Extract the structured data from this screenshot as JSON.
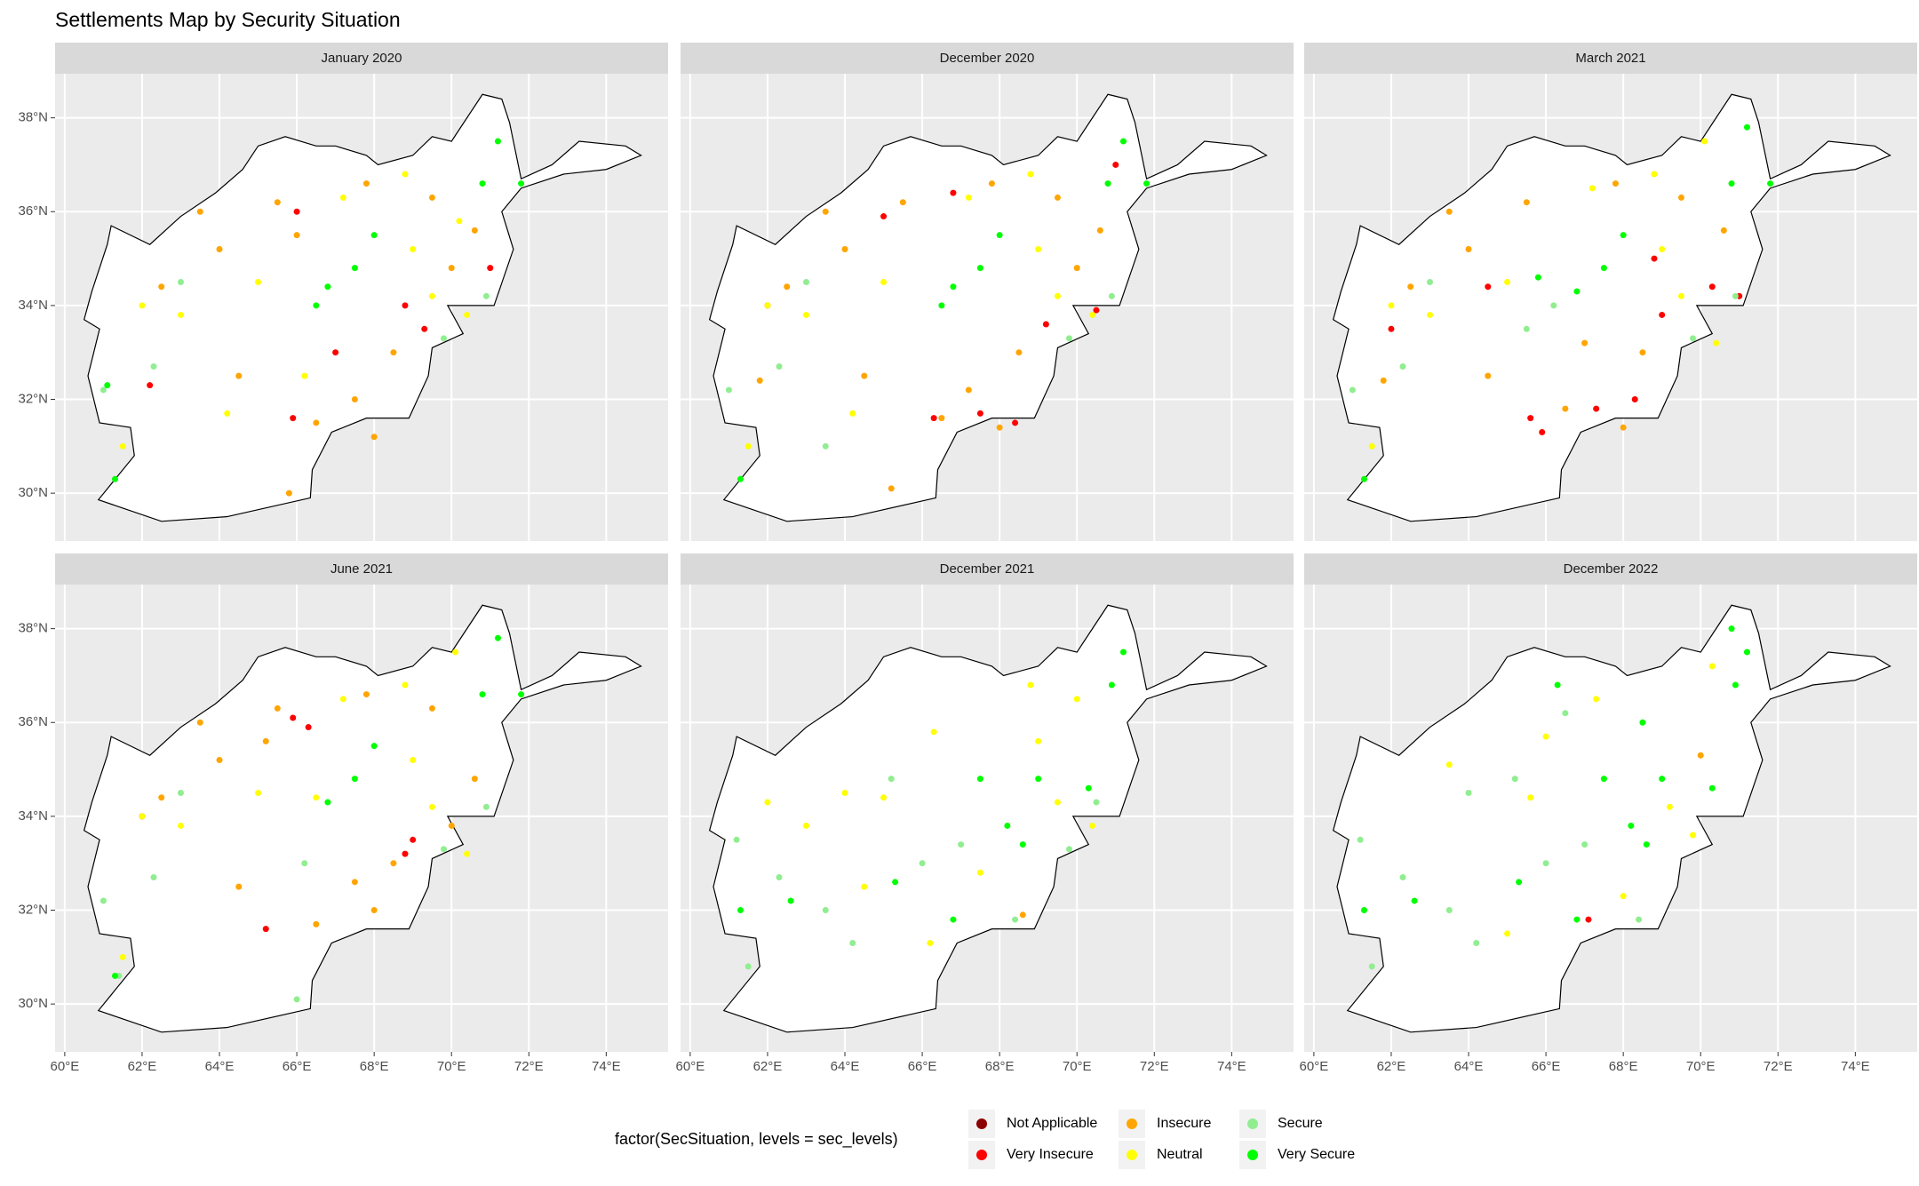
{
  "title": "Settlements Map by Security Situation",
  "legend": {
    "title": "factor(SecSituation, levels = sec_levels)",
    "entries": [
      {
        "name": "Not Applicable",
        "color": "#8b0000"
      },
      {
        "name": "Very Insecure",
        "color": "#ff0000"
      },
      {
        "name": "Insecure",
        "color": "#ffa500"
      },
      {
        "name": "Neutral",
        "color": "#ffff00"
      },
      {
        "name": "Secure",
        "color": "#90ee90"
      },
      {
        "name": "Very Secure",
        "color": "#00ff00"
      }
    ]
  },
  "xlim": [
    59.75,
    75.6
  ],
  "ylim": [
    28.98,
    38.94
  ],
  "xticks": [
    {
      "value": 60,
      "label": "60°E"
    },
    {
      "value": 62,
      "label": "62°E"
    },
    {
      "value": 64,
      "label": "64°E"
    },
    {
      "value": 66,
      "label": "66°E"
    },
    {
      "value": 68,
      "label": "68°E"
    },
    {
      "value": 70,
      "label": "70°E"
    },
    {
      "value": 72,
      "label": "72°E"
    },
    {
      "value": 74,
      "label": "74°E"
    }
  ],
  "yticks": [
    {
      "value": 30,
      "label": "30°N"
    },
    {
      "value": 32,
      "label": "32°N"
    },
    {
      "value": 34,
      "label": "34°N"
    },
    {
      "value": 36,
      "label": "36°N"
    },
    {
      "value": 38,
      "label": "38°N"
    }
  ],
  "chart_data": [
    {
      "type": "scatter",
      "title": "January 2020",
      "series": [
        {
          "x": [],
          "values": []
        },
        {
          "x": [
            66.0,
            68.8,
            69.3,
            62.2,
            65.9,
            67.0,
            71.0
          ],
          "values": [
            36.0,
            34.0,
            33.5,
            32.3,
            31.6,
            33.0,
            34.8
          ]
        },
        {
          "x": [
            65.5,
            67.8,
            64.0,
            62.5,
            67.5,
            66.5,
            68.5,
            70.0,
            66.0,
            64.5,
            69.5,
            63.5,
            65.8,
            68.0,
            70.6
          ],
          "values": [
            36.2,
            36.6,
            35.2,
            34.4,
            32.0,
            31.5,
            33.0,
            34.8,
            35.5,
            32.5,
            36.3,
            36.0,
            30.0,
            31.2,
            35.6
          ]
        },
        {
          "x": [
            68.8,
            69.5,
            63.0,
            65.0,
            61.5,
            70.4,
            66.2,
            69.0,
            67.2,
            62.0,
            64.2,
            70.2
          ],
          "values": [
            36.8,
            34.2,
            33.8,
            34.5,
            31.0,
            33.8,
            32.5,
            35.2,
            36.3,
            34.0,
            31.7,
            35.8
          ]
        },
        {
          "x": [
            69.8,
            61.0,
            63.0,
            70.9,
            62.3
          ],
          "values": [
            33.3,
            32.2,
            34.5,
            34.2,
            32.7
          ]
        },
        {
          "x": [
            67.5,
            66.5,
            70.8,
            71.2,
            68.0,
            61.3,
            66.8,
            71.8,
            61.1
          ],
          "values": [
            34.8,
            34.0,
            36.6,
            37.5,
            35.5,
            30.3,
            34.4,
            36.6,
            32.3
          ]
        }
      ]
    },
    {
      "type": "scatter",
      "title": "December 2020",
      "series": [
        {
          "x": [],
          "values": []
        },
        {
          "x": [
            66.8,
            65.0,
            66.3,
            67.5,
            68.4,
            69.2,
            70.5,
            71.0,
            62.0
          ],
          "values": [
            36.4,
            35.9,
            31.6,
            31.7,
            31.5,
            33.6,
            33.9,
            37.0,
            34.0
          ]
        },
        {
          "x": [
            65.5,
            67.8,
            64.0,
            62.5,
            67.2,
            66.5,
            68.5,
            70.0,
            63.5,
            64.5,
            69.5,
            65.2,
            68.0,
            70.6,
            61.8
          ],
          "values": [
            36.2,
            36.6,
            35.2,
            34.4,
            32.2,
            31.6,
            33.0,
            34.8,
            36.0,
            32.5,
            36.3,
            30.1,
            31.4,
            35.6,
            32.4
          ]
        },
        {
          "x": [
            68.8,
            69.5,
            63.0,
            65.0,
            61.5,
            70.4,
            69.0,
            67.2,
            62.0,
            64.2
          ],
          "values": [
            36.8,
            34.2,
            33.8,
            34.5,
            31.0,
            33.8,
            35.2,
            36.3,
            34.0,
            31.7
          ]
        },
        {
          "x": [
            69.8,
            61.0,
            63.0,
            70.9,
            62.3,
            63.5
          ],
          "values": [
            33.3,
            32.2,
            34.5,
            34.2,
            32.7,
            31.0
          ]
        },
        {
          "x": [
            67.5,
            66.5,
            70.8,
            71.2,
            68.0,
            61.3,
            66.8,
            71.8
          ],
          "values": [
            34.8,
            34.0,
            36.6,
            37.5,
            35.5,
            30.3,
            34.4,
            36.6
          ]
        }
      ]
    },
    {
      "type": "scatter",
      "title": "March 2021",
      "series": [
        {
          "x": [],
          "values": []
        },
        {
          "x": [
            65.6,
            65.9,
            67.3,
            68.3,
            69.0,
            70.3,
            71.0,
            68.8,
            62.0,
            64.5
          ],
          "values": [
            31.6,
            31.3,
            31.8,
            32.0,
            33.8,
            34.4,
            34.2,
            35.0,
            33.5,
            34.4
          ]
        },
        {
          "x": [
            65.5,
            67.8,
            64.0,
            62.5,
            66.5,
            68.5,
            63.5,
            64.5,
            69.5,
            68.0,
            70.6,
            61.8,
            67.0
          ],
          "values": [
            36.2,
            36.6,
            35.2,
            34.4,
            31.8,
            33.0,
            36.0,
            32.5,
            36.3,
            31.4,
            35.6,
            32.4,
            33.2
          ]
        },
        {
          "x": [
            68.8,
            69.5,
            63.0,
            65.0,
            61.5,
            70.4,
            69.0,
            67.2,
            62.0,
            70.1
          ],
          "values": [
            36.8,
            34.2,
            33.8,
            34.5,
            31.0,
            33.2,
            35.2,
            36.5,
            34.0,
            37.5
          ]
        },
        {
          "x": [
            69.8,
            61.0,
            63.0,
            70.9,
            62.3,
            66.2,
            65.5
          ],
          "values": [
            33.3,
            32.2,
            34.5,
            34.2,
            32.7,
            34.0,
            33.5
          ]
        },
        {
          "x": [
            67.5,
            66.8,
            70.8,
            71.2,
            68.0,
            61.3,
            65.8,
            71.8
          ],
          "values": [
            34.8,
            34.3,
            36.6,
            37.8,
            35.5,
            30.3,
            34.6,
            36.6
          ]
        }
      ]
    },
    {
      "type": "scatter",
      "title": "June 2021",
      "series": [
        {
          "x": [],
          "values": []
        },
        {
          "x": [
            65.9,
            66.3,
            65.2,
            69.0,
            68.8,
            62.0
          ],
          "values": [
            36.1,
            35.9,
            31.6,
            33.5,
            33.2,
            34.0
          ]
        },
        {
          "x": [
            65.5,
            65.2,
            67.8,
            64.0,
            62.5,
            66.5,
            68.5,
            63.5,
            64.5,
            69.5,
            68.0,
            70.6,
            67.5,
            70.0
          ],
          "values": [
            36.3,
            35.6,
            36.6,
            35.2,
            34.4,
            31.7,
            33.0,
            36.0,
            32.5,
            36.3,
            32.0,
            34.8,
            32.6,
            33.8
          ]
        },
        {
          "x": [
            68.8,
            69.5,
            63.0,
            65.0,
            61.5,
            70.4,
            69.0,
            67.2,
            62.0,
            70.1,
            66.5
          ],
          "values": [
            36.8,
            34.2,
            33.8,
            34.5,
            31.0,
            33.2,
            35.2,
            36.5,
            34.0,
            37.5,
            34.4
          ]
        },
        {
          "x": [
            69.8,
            61.0,
            63.0,
            70.9,
            62.3,
            66.2,
            66.0,
            61.4
          ],
          "values": [
            33.3,
            32.2,
            34.5,
            34.2,
            32.7,
            33.0,
            30.1,
            30.6
          ]
        },
        {
          "x": [
            67.5,
            66.8,
            70.8,
            71.2,
            68.0,
            61.3,
            71.8
          ],
          "values": [
            34.8,
            34.3,
            36.6,
            37.8,
            35.5,
            30.6,
            36.6
          ]
        }
      ]
    },
    {
      "type": "scatter",
      "title": "December 2021",
      "series": [
        {
          "x": [],
          "values": []
        },
        {
          "x": [],
          "values": []
        },
        {
          "x": [
            68.6
          ],
          "values": [
            31.9
          ]
        },
        {
          "x": [
            64.0,
            65.0,
            66.3,
            68.8,
            69.5,
            70.4,
            63.0,
            62.0,
            67.5,
            69.0,
            66.2,
            70.0,
            64.5
          ],
          "values": [
            34.5,
            34.4,
            35.8,
            36.8,
            34.3,
            33.8,
            33.8,
            34.3,
            32.8,
            35.6,
            31.3,
            36.5,
            32.5
          ]
        },
        {
          "x": [
            61.5,
            62.3,
            63.5,
            66.0,
            67.0,
            68.4,
            69.8,
            70.5,
            65.2,
            61.2,
            64.2
          ],
          "values": [
            30.8,
            32.7,
            32.0,
            33.0,
            33.4,
            31.8,
            33.3,
            34.3,
            34.8,
            33.5,
            31.3
          ]
        },
        {
          "x": [
            67.5,
            68.2,
            69.0,
            70.3,
            71.2,
            61.3,
            66.8,
            68.6,
            62.6,
            65.3,
            70.9
          ],
          "values": [
            34.8,
            33.8,
            34.8,
            34.6,
            37.5,
            32.0,
            31.8,
            33.4,
            32.2,
            32.6,
            36.8
          ]
        }
      ]
    },
    {
      "type": "scatter",
      "title": "December 2022",
      "series": [
        {
          "x": [],
          "values": []
        },
        {
          "x": [
            67.1
          ],
          "values": [
            31.8
          ]
        },
        {
          "x": [
            70.0
          ],
          "values": [
            35.3
          ]
        },
        {
          "x": [
            65.6,
            66.0,
            69.2,
            69.8,
            68.0,
            63.5,
            67.3,
            65.0,
            70.3
          ],
          "values": [
            34.4,
            35.7,
            34.2,
            33.6,
            32.3,
            35.1,
            36.5,
            31.5,
            37.2
          ]
        },
        {
          "x": [
            61.5,
            62.3,
            63.5,
            66.0,
            67.0,
            68.4,
            65.2,
            61.2,
            64.2,
            66.5,
            64.0
          ],
          "values": [
            30.8,
            32.7,
            32.0,
            33.0,
            33.4,
            31.8,
            34.8,
            33.5,
            31.3,
            36.2,
            34.5
          ]
        },
        {
          "x": [
            67.5,
            68.2,
            69.0,
            70.3,
            71.2,
            70.8,
            61.3,
            66.8,
            68.6,
            62.6,
            65.3,
            70.9,
            66.3,
            68.5
          ],
          "values": [
            34.8,
            33.8,
            34.8,
            34.6,
            37.5,
            38.0,
            32.0,
            31.8,
            33.4,
            32.2,
            32.6,
            36.8,
            36.8,
            36.0
          ]
        }
      ]
    }
  ]
}
